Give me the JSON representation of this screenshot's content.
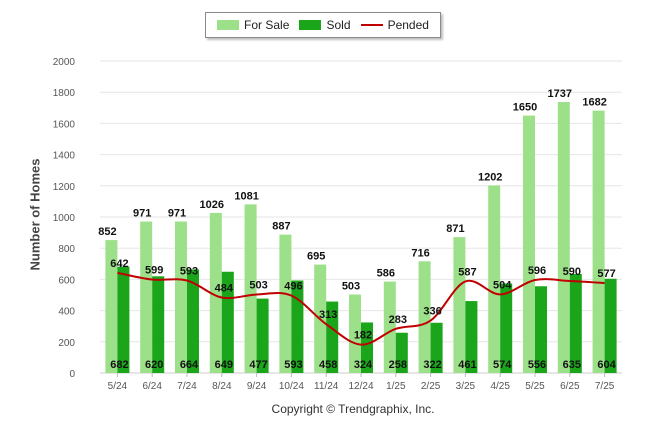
{
  "legend": {
    "for_sale_label": "For Sale",
    "sold_label": "Sold",
    "pended_label": "Pended"
  },
  "copyright": "Copyright © Trendgraphix, Inc.",
  "colors": {
    "for_sale": "#9de08a",
    "sold": "#1aa51a",
    "pended": "#c00000",
    "grid": "#e6e6e6",
    "axis_text": "#555555"
  },
  "chart_data": {
    "type": "bar",
    "title": "",
    "xlabel": "",
    "ylabel": "Number of Homes",
    "ylim": [
      0,
      2000
    ],
    "yticks": [
      0,
      200,
      400,
      600,
      800,
      1000,
      1200,
      1400,
      1600,
      1800,
      2000
    ],
    "grid": true,
    "legend_position": "top",
    "categories": [
      "5/24",
      "6/24",
      "7/24",
      "8/24",
      "9/24",
      "10/24",
      "11/24",
      "12/24",
      "1/25",
      "2/25",
      "3/25",
      "4/25",
      "5/25",
      "6/25",
      "7/25"
    ],
    "series": [
      {
        "name": "For Sale",
        "kind": "bar",
        "values": [
          852,
          971,
          971,
          1026,
          1081,
          887,
          695,
          503,
          586,
          716,
          871,
          1202,
          1650,
          1737,
          1682
        ]
      },
      {
        "name": "Sold",
        "kind": "bar",
        "values": [
          682,
          620,
          664,
          649,
          477,
          593,
          458,
          324,
          258,
          322,
          461,
          574,
          556,
          635,
          604
        ]
      },
      {
        "name": "Pended",
        "kind": "line",
        "values": [
          642,
          599,
          593,
          484,
          503,
          496,
          313,
          182,
          283,
          336,
          587,
          504,
          596,
          590,
          577
        ]
      }
    ]
  }
}
